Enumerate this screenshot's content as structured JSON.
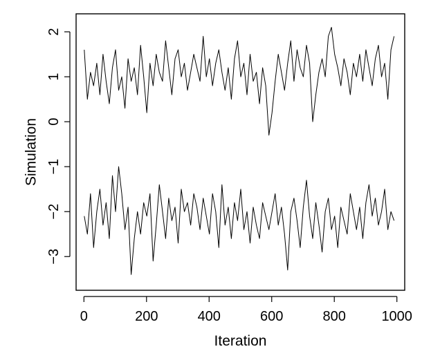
{
  "chart_data": {
    "type": "line",
    "title": "",
    "xlabel": "Iteration",
    "ylabel": "Simulation",
    "xlim": [
      -25,
      1025
    ],
    "ylim": [
      -3.75,
      2.4
    ],
    "x_ticks": [
      0,
      200,
      400,
      600,
      800,
      1000
    ],
    "y_ticks": [
      -3,
      -2,
      -1,
      0,
      1,
      2
    ],
    "x_tick_labels": [
      "0",
      "200",
      "400",
      "600",
      "800",
      "1000"
    ],
    "y_tick_labels": [
      "−3",
      "−2",
      "−1",
      "0",
      "1",
      "2"
    ],
    "grid": false,
    "legend": "none",
    "line_color": "#000000",
    "series": [
      {
        "x_start": 1,
        "x_step": 10,
        "values": [
          1.6,
          0.5,
          1.1,
          0.8,
          1.3,
          0.6,
          1.5,
          0.9,
          0.4,
          1.2,
          1.6,
          0.7,
          1.0,
          0.3,
          1.4,
          0.9,
          1.2,
          0.6,
          1.7,
          1.0,
          0.2,
          1.3,
          0.8,
          1.5,
          1.1,
          0.9,
          1.8,
          1.2,
          0.6,
          1.4,
          1.6,
          1.0,
          1.3,
          0.7,
          1.1,
          1.5,
          1.2,
          0.9,
          1.9,
          1.0,
          1.4,
          0.8,
          1.3,
          1.6,
          1.1,
          0.7,
          1.2,
          0.5,
          1.4,
          1.8,
          1.0,
          1.3,
          0.6,
          1.5,
          0.9,
          1.1,
          0.4,
          1.2,
          0.8,
          -0.3,
          0.2,
          0.9,
          1.5,
          1.1,
          0.7,
          1.3,
          1.8,
          0.9,
          1.6,
          1.2,
          1.0,
          1.7,
          1.3,
          0.0,
          0.6,
          1.1,
          1.4,
          1.0,
          1.9,
          2.1,
          1.5,
          1.2,
          0.8,
          1.4,
          1.1,
          0.6,
          1.3,
          1.0,
          1.5,
          0.9,
          1.6,
          1.2,
          0.8,
          1.4,
          1.7,
          1.0,
          1.3,
          0.5,
          1.6,
          1.9
        ]
      },
      {
        "x_start": 1,
        "x_step": 10,
        "values": [
          -2.1,
          -2.5,
          -1.6,
          -2.8,
          -2.0,
          -1.5,
          -2.3,
          -1.8,
          -2.6,
          -1.2,
          -2.0,
          -1.0,
          -1.6,
          -2.4,
          -1.9,
          -3.4,
          -2.6,
          -2.0,
          -2.5,
          -1.8,
          -2.1,
          -1.6,
          -3.1,
          -2.3,
          -1.4,
          -2.0,
          -2.6,
          -1.7,
          -2.2,
          -1.9,
          -2.7,
          -1.5,
          -2.0,
          -1.8,
          -2.3,
          -1.6,
          -1.9,
          -2.4,
          -1.7,
          -2.1,
          -2.5,
          -1.6,
          -2.0,
          -2.8,
          -1.4,
          -2.3,
          -1.9,
          -2.6,
          -1.8,
          -2.2,
          -1.5,
          -2.4,
          -2.0,
          -2.7,
          -1.9,
          -2.3,
          -2.6,
          -1.8,
          -2.1,
          -2.4,
          -2.0,
          -1.6,
          -2.3,
          -1.9,
          -2.5,
          -3.3,
          -2.0,
          -1.7,
          -2.2,
          -2.8,
          -1.9,
          -1.3,
          -2.1,
          -2.6,
          -1.8,
          -2.3,
          -2.9,
          -2.0,
          -1.7,
          -2.4,
          -2.1,
          -2.8,
          -1.9,
          -2.2,
          -2.5,
          -1.6,
          -2.0,
          -2.4,
          -1.9,
          -2.6,
          -1.8,
          -1.4,
          -2.1,
          -1.7,
          -2.3,
          -2.0,
          -1.5,
          -2.4,
          -2.0,
          -2.2
        ]
      }
    ]
  }
}
